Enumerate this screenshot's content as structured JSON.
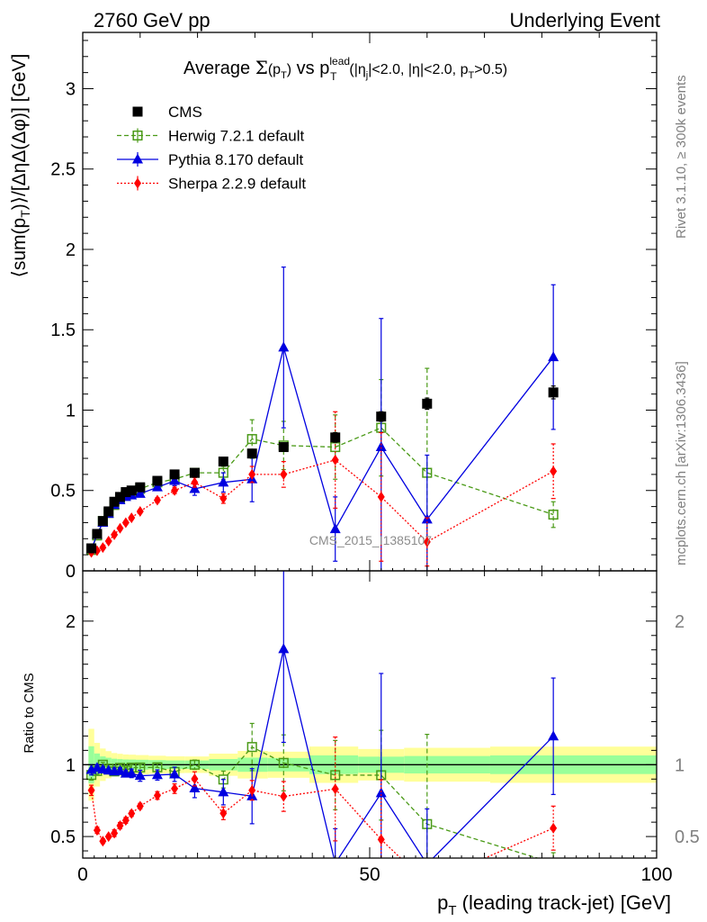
{
  "header": {
    "left": "2760 GeV pp",
    "right": "Underlying Event",
    "side_rivet": "Rivet 3.1.10, ≥ 300k events",
    "side_mcplots": "mcplots.cern.ch [arXiv:1306.3436]",
    "watermark": "CMS_2015_I1385107"
  },
  "chart_data": {
    "type": "line",
    "title": "Average Σ(pT) vs pT^lead (|ηj|<2.0, |η|<2.0, pT>0.5)",
    "xlabel": "pT (leading track-jet) [GeV]",
    "ylabel": "⟨sum(pT)⟩/[ΔηΔ(Δφ)] [GeV]",
    "ratio_ylabel": "Ratio to CMS",
    "xlim": [
      0,
      100
    ],
    "ylim": [
      0,
      3.35
    ],
    "ratio_ylim": [
      0.35,
      2.35
    ],
    "x_ticks": [
      0,
      50,
      100
    ],
    "y_ticks": [
      0,
      0.5,
      1,
      1.5,
      2,
      2.5,
      3
    ],
    "y_tick_labels": [
      "0",
      "0.5",
      "1",
      "1.5",
      "2",
      "2.5",
      "3"
    ],
    "ratio_ticks": [
      0.5,
      1,
      2
    ],
    "ratio_tick_labels": [
      "0.5",
      "1",
      "2"
    ],
    "legend_position": "top-left",
    "series": [
      {
        "name": "CMS",
        "color": "#000000",
        "marker": "square-filled",
        "line": "none",
        "x": [
          1.5,
          2.5,
          3.5,
          4.5,
          5.5,
          6.5,
          7.5,
          8.5,
          10,
          13,
          16,
          19.5,
          24.5,
          29.5,
          35,
          44,
          52,
          60,
          82
        ],
        "y": [
          0.14,
          0.23,
          0.31,
          0.37,
          0.43,
          0.46,
          0.49,
          0.5,
          0.52,
          0.56,
          0.6,
          0.61,
          0.68,
          0.73,
          0.77,
          0.83,
          0.96,
          1.04,
          1.11
        ],
        "err": [
          0.01,
          0.01,
          0.01,
          0.01,
          0.01,
          0.01,
          0.01,
          0.01,
          0.01,
          0.01,
          0.01,
          0.01,
          0.015,
          0.02,
          0.02,
          0.03,
          0.03,
          0.035,
          0.04
        ]
      },
      {
        "name": "Herwig 7.2.1 default",
        "color": "#4a9a17",
        "marker": "square-open",
        "line": "dashed",
        "x": [
          1.5,
          2.5,
          3.5,
          4.5,
          5.5,
          6.5,
          7.5,
          8.5,
          10,
          13,
          16,
          19.5,
          24.5,
          29.5,
          35,
          44,
          52,
          60,
          82
        ],
        "y": [
          0.13,
          0.22,
          0.31,
          0.36,
          0.41,
          0.45,
          0.47,
          0.49,
          0.51,
          0.55,
          0.57,
          0.61,
          0.61,
          0.82,
          0.78,
          0.77,
          0.89,
          0.61,
          0.35
        ],
        "err": [
          0.005,
          0.005,
          0.005,
          0.005,
          0.01,
          0.01,
          0.01,
          0.01,
          0.01,
          0.015,
          0.02,
          0.02,
          0.04,
          0.12,
          0.15,
          0.2,
          0.3,
          0.65,
          0.08
        ]
      },
      {
        "name": "Pythia 8.170 default",
        "color": "#0000e0",
        "marker": "triangle-filled",
        "line": "solid",
        "x": [
          1.5,
          2.5,
          3.5,
          4.5,
          5.5,
          6.5,
          7.5,
          8.5,
          10,
          13,
          16,
          19.5,
          24.5,
          29.5,
          35,
          44,
          52,
          60,
          82
        ],
        "y": [
          0.135,
          0.225,
          0.3,
          0.355,
          0.41,
          0.44,
          0.46,
          0.47,
          0.48,
          0.52,
          0.56,
          0.51,
          0.55,
          0.57,
          1.39,
          0.26,
          0.77,
          0.32,
          1.33
        ],
        "err": [
          0.005,
          0.005,
          0.005,
          0.005,
          0.01,
          0.01,
          0.01,
          0.015,
          0.02,
          0.02,
          0.03,
          0.04,
          0.06,
          0.14,
          0.5,
          0.2,
          0.8,
          0.4,
          0.45
        ]
      },
      {
        "name": "Sherpa 2.2.9 default",
        "color": "#ff0000",
        "marker": "diamond-filled",
        "line": "dotted",
        "x": [
          1.5,
          2.5,
          3.5,
          4.5,
          5.5,
          6.5,
          7.5,
          8.5,
          10,
          13,
          16,
          19.5,
          24.5,
          29.5,
          35,
          44,
          52,
          60,
          82
        ],
        "y": [
          0.115,
          0.125,
          0.145,
          0.185,
          0.225,
          0.265,
          0.3,
          0.33,
          0.37,
          0.44,
          0.5,
          0.55,
          0.45,
          0.6,
          0.6,
          0.69,
          0.46,
          0.18,
          0.62
        ],
        "err": [
          0.005,
          0.005,
          0.005,
          0.005,
          0.01,
          0.01,
          0.01,
          0.01,
          0.01,
          0.015,
          0.02,
          0.03,
          0.03,
          0.05,
          0.08,
          0.3,
          0.4,
          0.15,
          0.17
        ]
      }
    ]
  }
}
